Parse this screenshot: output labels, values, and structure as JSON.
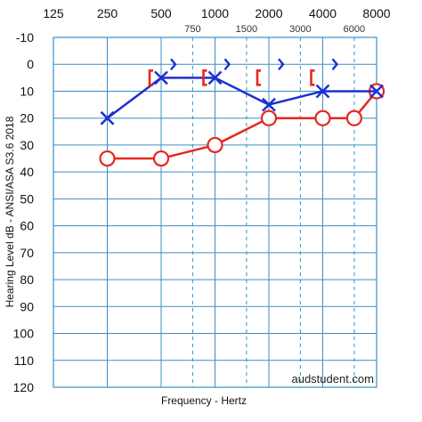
{
  "chart_data": {
    "type": "line",
    "title": "",
    "xlabel": "Frequency - Hertz",
    "ylabel": "Hearing Level dB - ANSI/ASA S3.6 2018",
    "x_scale": "log",
    "x_ticks": [
      "125",
      "250",
      "500",
      "1000",
      "2000",
      "4000",
      "8000"
    ],
    "x_inter_ticks": [
      "750",
      "1500",
      "3000",
      "6000"
    ],
    "ylim": [
      -10,
      120
    ],
    "y_inverted": true,
    "y_ticks": [
      "-10",
      "0",
      "10",
      "20",
      "30",
      "40",
      "50",
      "60",
      "70",
      "80",
      "90",
      "100",
      "110",
      "120"
    ],
    "grid": true,
    "series": [
      {
        "color": "#e8261e",
        "marker": "circle",
        "x": [
          250,
          500,
          1000,
          2000,
          4000,
          6000,
          8000
        ],
        "y": [
          35,
          35,
          30,
          20,
          20,
          20,
          10
        ]
      },
      {
        "color": "#1d2fd0",
        "marker": "cross",
        "x": [
          250,
          500,
          1000,
          2000,
          4000,
          8000
        ],
        "y": [
          20,
          5,
          5,
          15,
          10,
          10
        ]
      },
      {
        "color": "#e8261e",
        "marker": "bracket-left",
        "x": [
          500,
          1000,
          2000,
          4000
        ],
        "y": [
          5,
          5,
          5,
          5
        ]
      },
      {
        "color": "#1d2fd0",
        "marker": "chevron-right",
        "x": [
          500,
          1000,
          2000,
          4000
        ],
        "y": [
          0,
          0,
          0,
          0
        ]
      }
    ],
    "watermark": "audstudent.com"
  }
}
